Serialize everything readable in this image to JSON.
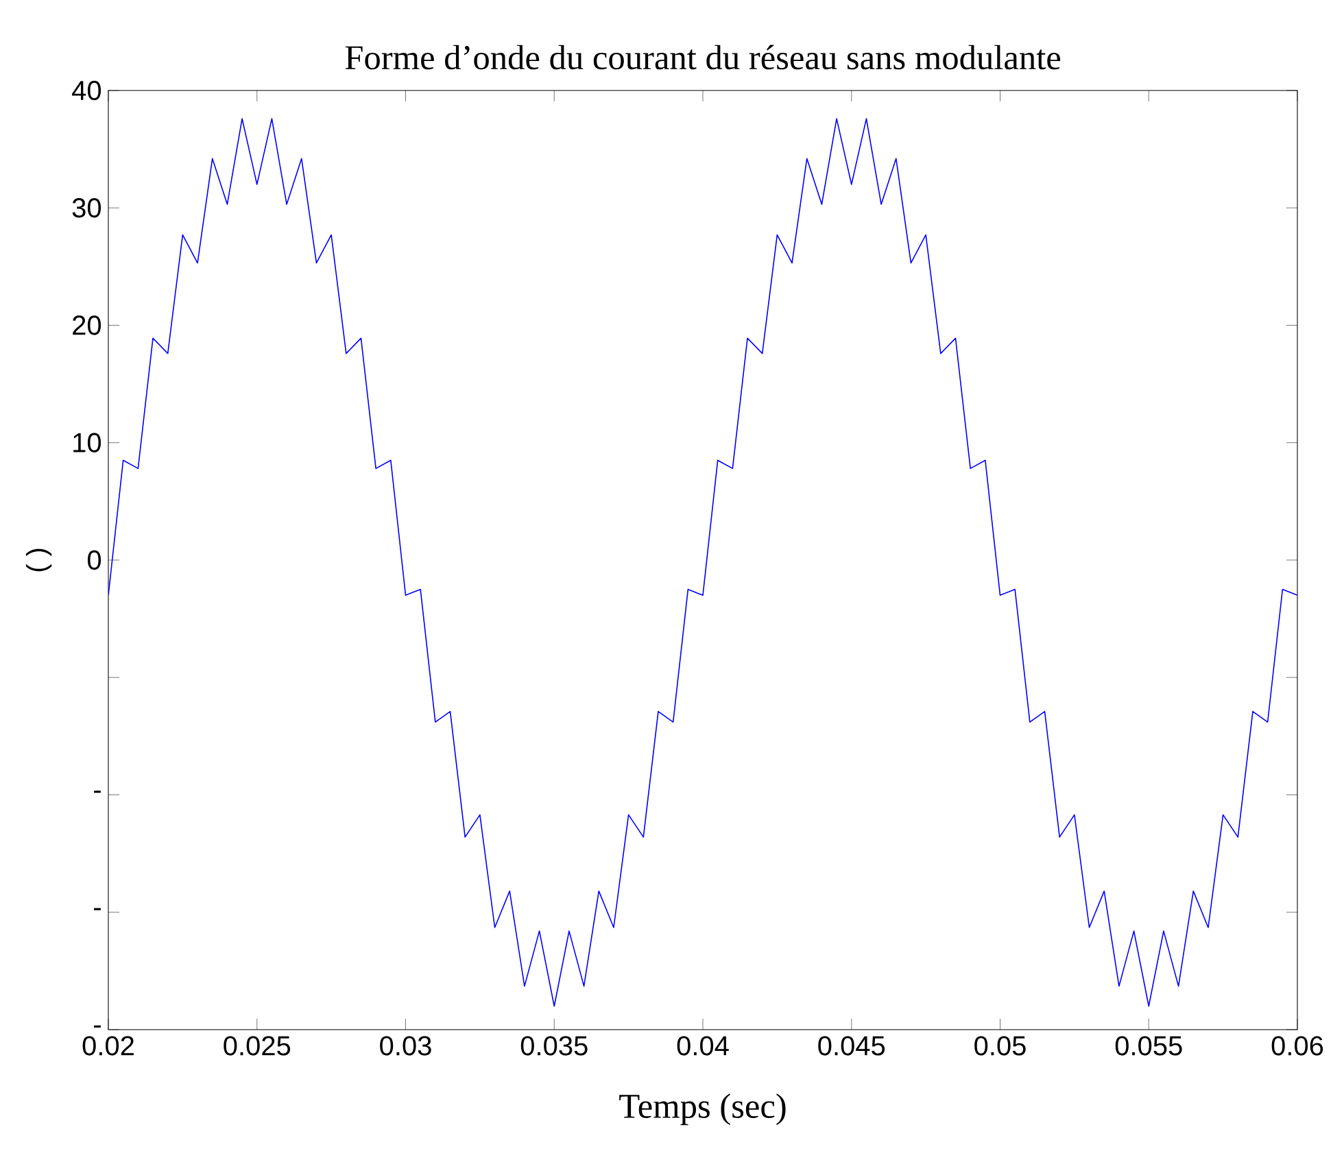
{
  "chart_data": {
    "type": "line",
    "title": "Forme d’onde du courant du réseau sans modulante",
    "xlabel": "Temps (sec)",
    "ylabel": "( )",
    "x": [
      0.02,
      0.0205,
      0.021,
      0.0215,
      0.022,
      0.0225,
      0.023,
      0.0235,
      0.024,
      0.0245,
      0.025,
      0.0255,
      0.026,
      0.0265,
      0.027,
      0.0275,
      0.028,
      0.0285,
      0.029,
      0.0295,
      0.03,
      0.0305,
      0.031,
      0.0315,
      0.032,
      0.0325,
      0.033,
      0.0335,
      0.034,
      0.0345,
      0.035,
      0.0355,
      0.036,
      0.0365,
      0.037,
      0.0375,
      0.038,
      0.0385,
      0.039,
      0.0395,
      0.04,
      0.0405,
      0.041,
      0.0415,
      0.042,
      0.0425,
      0.043,
      0.0435,
      0.044,
      0.0445,
      0.045,
      0.0455,
      0.046,
      0.0465,
      0.047,
      0.0475,
      0.048,
      0.0485,
      0.049,
      0.0495,
      0.05,
      0.0505,
      0.051,
      0.0515,
      0.052,
      0.0525,
      0.053,
      0.0535,
      0.054,
      0.0545,
      0.055,
      0.0555,
      0.056,
      0.0565,
      0.057,
      0.0575,
      0.058,
      0.0585,
      0.059,
      0.0595,
      0.06
    ],
    "series": [
      {
        "color": "#0000ff",
        "values": [
          -3,
          8.5,
          7.8,
          18.9,
          17.6,
          27.7,
          25.3,
          34.2,
          30.3,
          37.6,
          32,
          37.6,
          30.3,
          34.2,
          25.3,
          27.7,
          17.6,
          18.9,
          7.8,
          8.5,
          -3,
          -2.5,
          -13.8,
          -12.9,
          -23.6,
          -21.7,
          -31.3,
          -28.2,
          -36.3,
          -31.6,
          -38,
          -31.6,
          -36.3,
          -28.2,
          -31.3,
          -21.7,
          -23.6,
          -12.9,
          -13.8,
          -2.5,
          -3,
          8.5,
          7.8,
          18.9,
          17.6,
          27.7,
          25.3,
          34.2,
          30.3,
          37.6,
          32,
          37.6,
          30.3,
          34.2,
          25.3,
          27.7,
          17.6,
          18.9,
          7.8,
          8.5,
          -3,
          -2.5,
          -13.8,
          -12.9,
          -23.6,
          -21.7,
          -31.3,
          -28.2,
          -36.3,
          -31.6,
          -38,
          -31.6,
          -36.3,
          -28.2,
          -31.3,
          -21.7,
          -23.6,
          -12.9,
          -13.8,
          -2.5,
          -3
        ]
      }
    ],
    "xlim": [
      0.02,
      0.06
    ],
    "ylim": [
      -40,
      40
    ],
    "xticks": [
      0.02,
      0.025,
      0.03,
      0.035,
      0.04,
      0.045,
      0.05,
      0.055,
      0.06
    ],
    "yticks": [
      {
        "value": -40,
        "label": "-"
      },
      {
        "value": -30,
        "label": "-"
      },
      {
        "value": -20,
        "label": "-"
      },
      {
        "value": -10,
        "label": null
      },
      0,
      10,
      20,
      30,
      40
    ],
    "marker": "none",
    "line_style": "solid"
  }
}
